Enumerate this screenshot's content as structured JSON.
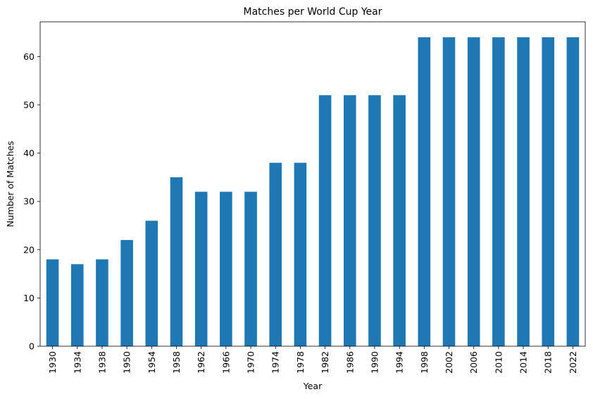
{
  "chart_data": {
    "type": "bar",
    "title": "Matches per World Cup Year",
    "xlabel": "Year",
    "ylabel": "Number of Matches",
    "categories": [
      "1930",
      "1934",
      "1938",
      "1950",
      "1954",
      "1958",
      "1962",
      "1966",
      "1970",
      "1974",
      "1978",
      "1982",
      "1986",
      "1990",
      "1994",
      "1998",
      "2002",
      "2006",
      "2010",
      "2014",
      "2018",
      "2022"
    ],
    "values": [
      18,
      17,
      18,
      22,
      26,
      35,
      32,
      32,
      32,
      38,
      38,
      52,
      52,
      52,
      52,
      64,
      64,
      64,
      64,
      64,
      64,
      64
    ],
    "ylim": [
      0,
      67.2
    ],
    "yticks": [
      0,
      10,
      20,
      30,
      40,
      50,
      60
    ],
    "grid": false,
    "legend": "none",
    "bar_color": "#1f77b4"
  }
}
